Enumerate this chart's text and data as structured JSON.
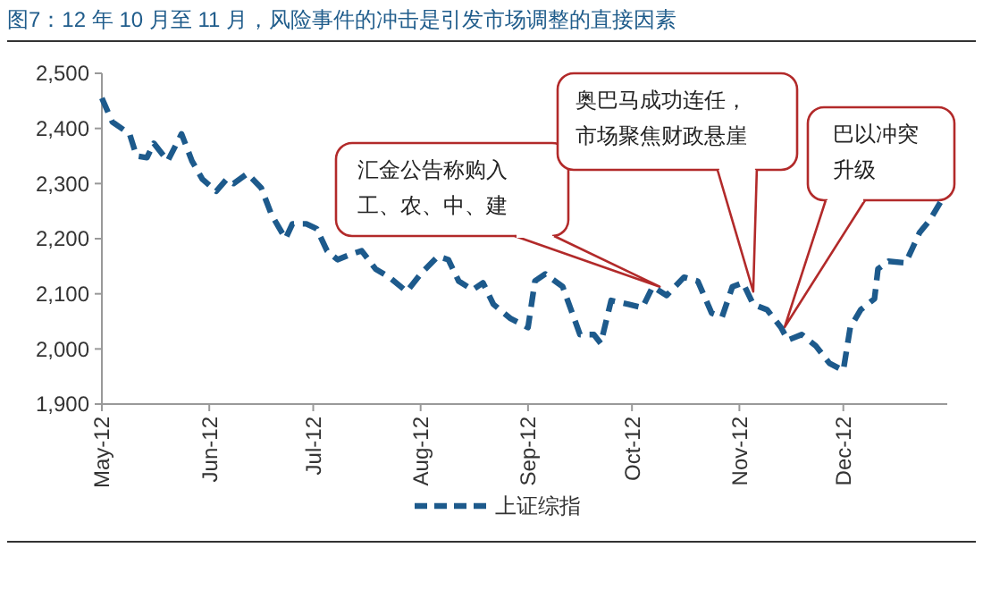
{
  "chart_data": {
    "type": "line",
    "title": "图7：12 年 10 月至 11 月，风险事件的冲击是引发市场调整的直接因素",
    "x": [
      "2012-05-01",
      "2012-05-04",
      "2012-05-09",
      "2012-05-11",
      "2012-05-14",
      "2012-05-16",
      "2012-05-20",
      "2012-05-24",
      "2012-05-27",
      "2012-05-30",
      "2012-06-03",
      "2012-06-06",
      "2012-06-08",
      "2012-06-12",
      "2012-06-16",
      "2012-06-19",
      "2012-06-23",
      "2012-06-25",
      "2012-06-29",
      "2012-07-02",
      "2012-07-05",
      "2012-07-08",
      "2012-07-12",
      "2012-07-15",
      "2012-07-19",
      "2012-07-23",
      "2012-07-28",
      "2012-08-01",
      "2012-08-06",
      "2012-08-09",
      "2012-08-12",
      "2012-08-16",
      "2012-08-19",
      "2012-08-22",
      "2012-08-27",
      "2012-09-01",
      "2012-09-03",
      "2012-09-06",
      "2012-09-11",
      "2012-09-16",
      "2012-09-20",
      "2012-09-22",
      "2012-09-25",
      "2012-09-30",
      "2012-10-04",
      "2012-10-07",
      "2012-10-11",
      "2012-10-16",
      "2012-10-20",
      "2012-10-24",
      "2012-10-27",
      "2012-10-30",
      "2012-11-02",
      "2012-11-05",
      "2012-11-09",
      "2012-11-13",
      "2012-11-15",
      "2012-11-19",
      "2012-11-23",
      "2012-11-27",
      "2012-12-01",
      "2012-12-03",
      "2012-12-06",
      "2012-12-10",
      "2012-12-11",
      "2012-12-14",
      "2012-12-19",
      "2012-12-23",
      "2012-12-26",
      "2012-12-29"
    ],
    "series": [
      {
        "name": "上证综指",
        "color": "#1d5a8c",
        "values": [
          2455,
          2412,
          2390,
          2350,
          2347,
          2373,
          2341,
          2390,
          2341,
          2308,
          2286,
          2308,
          2300,
          2318,
          2292,
          2243,
          2200,
          2227,
          2227,
          2218,
          2178,
          2162,
          2172,
          2178,
          2145,
          2130,
          2104,
          2136,
          2168,
          2162,
          2123,
          2107,
          2120,
          2081,
          2055,
          2039,
          2123,
          2136,
          2113,
          2026,
          2026,
          2010,
          2088,
          2081,
          2075,
          2113,
          2097,
          2130,
          2123,
          2065,
          2058,
          2113,
          2120,
          2081,
          2071,
          2039,
          2016,
          2026,
          2006,
          1974,
          1961,
          2039,
          2071,
          2091,
          2145,
          2159,
          2156,
          2211,
          2234,
          2266
        ]
      }
    ],
    "xlim": [
      "2012-05-01",
      "2012-12-31"
    ],
    "xticks": [
      {
        "value": "2012-05-01",
        "label": "May-12"
      },
      {
        "value": "2012-06-01",
        "label": "Jun-12"
      },
      {
        "value": "2012-07-01",
        "label": "Jul-12"
      },
      {
        "value": "2012-08-01",
        "label": "Aug-12"
      },
      {
        "value": "2012-09-01",
        "label": "Sep-12"
      },
      {
        "value": "2012-10-01",
        "label": "Oct-12"
      },
      {
        "value": "2012-11-01",
        "label": "Nov-12"
      },
      {
        "value": "2012-12-01",
        "label": "Dec-12"
      }
    ],
    "ylim": [
      1900,
      2500
    ],
    "yticks": [
      {
        "value": 1900,
        "label": "1,900"
      },
      {
        "value": 2000,
        "label": "2,000"
      },
      {
        "value": 2100,
        "label": "2,100"
      },
      {
        "value": 2200,
        "label": "2,200"
      },
      {
        "value": 2300,
        "label": "2,300"
      },
      {
        "value": 2400,
        "label": "2,400"
      },
      {
        "value": 2500,
        "label": "2,500"
      }
    ],
    "annotations": [
      {
        "text": "汇金公告称购入工、农、中、建",
        "x": "2012-10-09",
        "y": 2113
      },
      {
        "text": "奥巴马成功连任，市场聚焦财政悬崖",
        "x": "2012-11-05",
        "y": 2104
      },
      "巴以冲突升级"
    ],
    "grid": false,
    "legend": "bottom",
    "line_style": "dashed",
    "marker": "none"
  }
}
